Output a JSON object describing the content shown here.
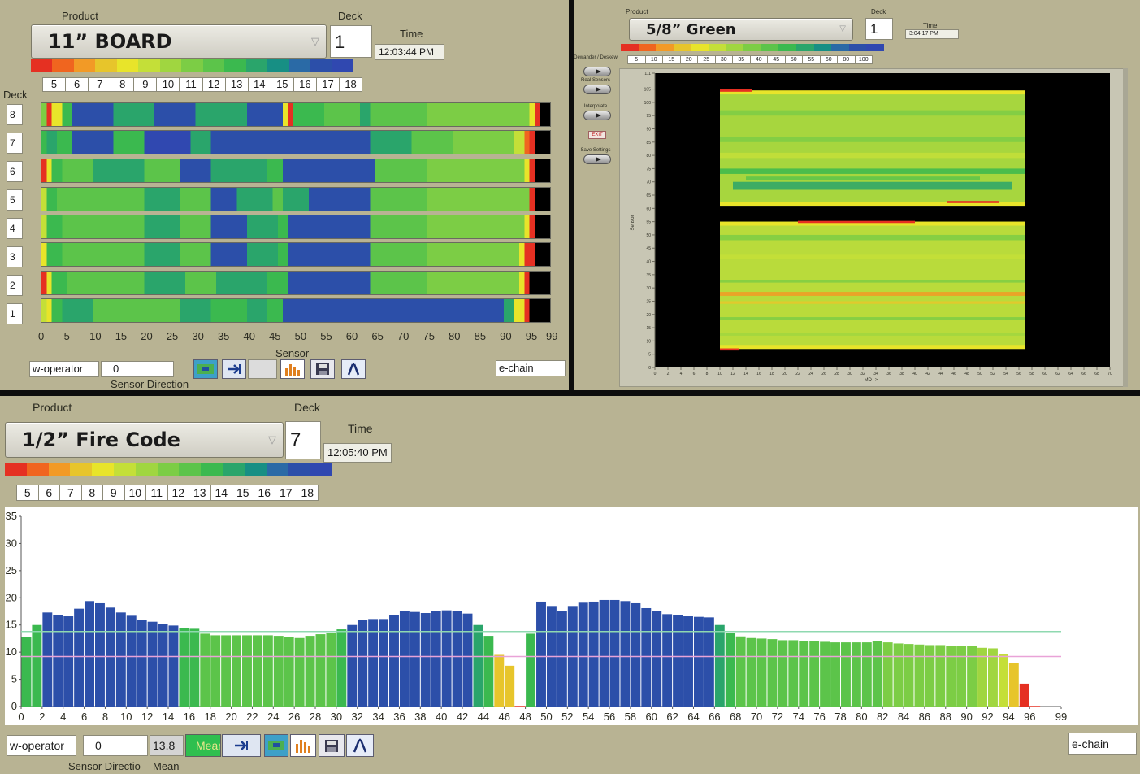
{
  "colors": {
    "scale": [
      "#e53022",
      "#f0651f",
      "#f29a26",
      "#e7c52b",
      "#e8e42a",
      "#c4df38",
      "#a0d640",
      "#7ccd45",
      "#5cc44a",
      "#3bb94f",
      "#2aa56b",
      "#178f84",
      "#2a6aa6",
      "#2c4fa9",
      "#3048b0"
    ],
    "panel_bg": "#b8b393"
  },
  "panel1": {
    "product_label": "Product",
    "product_value": "11” BOARD",
    "deck_label": "Deck",
    "deck_value": "1",
    "time_label": "Time",
    "time_value": "12:03:44 PM",
    "legend_numbers": [
      "5",
      "6",
      "7",
      "8",
      "9",
      "10",
      "11",
      "12",
      "13",
      "14",
      "15",
      "16",
      "17",
      "18"
    ],
    "deck_axis_label": "Deck",
    "decks": [
      "8",
      "7",
      "6",
      "5",
      "4",
      "3",
      "2",
      "1"
    ],
    "x_ticks": [
      "0",
      "5",
      "10",
      "15",
      "20",
      "25",
      "30",
      "35",
      "40",
      "45",
      "50",
      "55",
      "60",
      "65",
      "70",
      "75",
      "80",
      "85",
      "90",
      "95",
      "99"
    ],
    "x_axis_label": "Sensor",
    "mode_value": "w-operator",
    "direction_value": "0",
    "direction_label": "Sensor Direction",
    "chain_value": "e-chain"
  },
  "panel2": {
    "product_label": "Product",
    "product_value": "5/8” Green",
    "deck_label": "Deck",
    "deck_value": "1",
    "time_label": "Time",
    "time_value": "3:04:17 PM",
    "legend_numbers": [
      "5",
      "10",
      "15",
      "20",
      "25",
      "30",
      "35",
      "40",
      "45",
      "50",
      "55",
      "60",
      "80",
      "100"
    ],
    "buttons": [
      "Dewander / Deskew",
      "Real Sensors",
      "Interpolate",
      "EXIT",
      "Save Settings"
    ],
    "y_label": "Sensor",
    "y_ticks": [
      "0",
      "5",
      "10",
      "15",
      "20",
      "25",
      "30",
      "35",
      "40",
      "45",
      "50",
      "55",
      "60",
      "65",
      "70",
      "75",
      "80",
      "85",
      "90",
      "95",
      "100",
      "105",
      "111"
    ],
    "x_ticks": [
      "0",
      "2",
      "4",
      "6",
      "8",
      "10",
      "12",
      "14",
      "16",
      "18",
      "20",
      "22",
      "24",
      "26",
      "28",
      "30",
      "32",
      "34",
      "36",
      "38",
      "40",
      "42",
      "44",
      "46",
      "48",
      "50",
      "52",
      "54",
      "56",
      "58",
      "60",
      "62",
      "64",
      "66",
      "68",
      "70"
    ],
    "x_label": "MD-->"
  },
  "panel3": {
    "product_label": "Product",
    "product_value": "1/2” Fire Code",
    "deck_label": "Deck",
    "deck_value": "7",
    "time_label": "Time",
    "time_value": "12:05:40 PM",
    "legend_numbers": [
      "5",
      "6",
      "7",
      "8",
      "9",
      "10",
      "11",
      "12",
      "13",
      "14",
      "15",
      "16",
      "17",
      "18"
    ],
    "mode_value": "w-operator",
    "direction_value": "0",
    "direction_label": "Sensor Directio",
    "mean_value": "13.8",
    "mean_button": "Mean",
    "mean_label": "Mean",
    "chain_value": "e-chain"
  },
  "chart_data": {
    "type": "bar",
    "title": "",
    "xlabel": "",
    "ylabel": "",
    "ylim": [
      0,
      35
    ],
    "xlim": [
      0,
      99
    ],
    "x_ticks": [
      0,
      2,
      4,
      6,
      8,
      10,
      12,
      14,
      16,
      18,
      20,
      22,
      24,
      26,
      28,
      30,
      32,
      34,
      36,
      38,
      40,
      42,
      44,
      46,
      48,
      50,
      52,
      54,
      56,
      58,
      60,
      62,
      64,
      66,
      68,
      70,
      72,
      74,
      76,
      78,
      80,
      82,
      84,
      86,
      88,
      90,
      92,
      94,
      96,
      99
    ],
    "y_ticks": [
      0,
      5,
      10,
      15,
      20,
      25,
      30,
      35
    ],
    "reference_lines": [
      {
        "color": "#8fd9b0",
        "value": 13.8
      },
      {
        "color": "#e9a3d8",
        "value": 9.2
      }
    ],
    "x": [
      0,
      1,
      2,
      3,
      4,
      5,
      6,
      7,
      8,
      9,
      10,
      11,
      12,
      13,
      14,
      15,
      16,
      17,
      18,
      19,
      20,
      21,
      22,
      23,
      24,
      25,
      26,
      27,
      28,
      29,
      30,
      31,
      32,
      33,
      34,
      35,
      36,
      37,
      38,
      39,
      40,
      41,
      42,
      43,
      44,
      45,
      46,
      47,
      48,
      49,
      50,
      51,
      52,
      53,
      54,
      55,
      56,
      57,
      58,
      59,
      60,
      61,
      62,
      63,
      64,
      65,
      66,
      67,
      68,
      69,
      70,
      71,
      72,
      73,
      74,
      75,
      76,
      77,
      78,
      79,
      80,
      81,
      82,
      83,
      84,
      85,
      86,
      87,
      88,
      89,
      90,
      91,
      92,
      93,
      94,
      95,
      96
    ],
    "values": [
      12.8,
      15.0,
      17.3,
      16.9,
      16.6,
      18.0,
      19.4,
      19.0,
      18.2,
      17.3,
      16.7,
      16.0,
      15.6,
      15.2,
      14.9,
      14.5,
      14.3,
      13.4,
      13.1,
      13.1,
      13.1,
      13.1,
      13.1,
      13.1,
      13.0,
      12.8,
      12.6,
      13.0,
      13.3,
      13.6,
      14.2,
      15.0,
      16.0,
      16.1,
      16.1,
      16.9,
      17.5,
      17.4,
      17.2,
      17.5,
      17.7,
      17.5,
      17.1,
      15.0,
      13.0,
      9.5,
      7.5,
      0.0,
      13.4,
      19.3,
      18.5,
      17.6,
      18.5,
      19.1,
      19.3,
      19.6,
      19.6,
      19.4,
      19.0,
      18.1,
      17.5,
      17.0,
      16.8,
      16.6,
      16.5,
      16.4,
      15.0,
      13.5,
      12.9,
      12.6,
      12.5,
      12.4,
      12.2,
      12.2,
      12.1,
      12.1,
      11.9,
      11.8,
      11.8,
      11.8,
      11.8,
      12.0,
      11.8,
      11.6,
      11.5,
      11.4,
      11.3,
      11.3,
      11.2,
      11.1,
      11.1,
      10.8,
      10.7,
      9.6,
      8.0,
      4.2,
      0.0
    ],
    "bar_colors": [
      "#3bb94f",
      "#3bb94f",
      "#2c4fa9",
      "#2c4fa9",
      "#2c4fa9",
      "#2c4fa9",
      "#2c4fa9",
      "#2c4fa9",
      "#2c4fa9",
      "#2c4fa9",
      "#2c4fa9",
      "#2c4fa9",
      "#2c4fa9",
      "#2c4fa9",
      "#2c4fa9",
      "#3bb94f",
      "#3bb94f",
      "#5cc44a",
      "#5cc44a",
      "#5cc44a",
      "#5cc44a",
      "#5cc44a",
      "#5cc44a",
      "#5cc44a",
      "#5cc44a",
      "#5cc44a",
      "#5cc44a",
      "#5cc44a",
      "#5cc44a",
      "#5cc44a",
      "#3bb94f",
      "#2c4fa9",
      "#2c4fa9",
      "#2c4fa9",
      "#2c4fa9",
      "#2c4fa9",
      "#2c4fa9",
      "#2c4fa9",
      "#2c4fa9",
      "#2c4fa9",
      "#2c4fa9",
      "#2c4fa9",
      "#2c4fa9",
      "#2aa56b",
      "#3bb94f",
      "#e7c52b",
      "#e7c52b",
      "#ffffff",
      "#3bb94f",
      "#2c4fa9",
      "#2c4fa9",
      "#2c4fa9",
      "#2c4fa9",
      "#2c4fa9",
      "#2c4fa9",
      "#2c4fa9",
      "#2c4fa9",
      "#2c4fa9",
      "#2c4fa9",
      "#2c4fa9",
      "#2c4fa9",
      "#2c4fa9",
      "#2c4fa9",
      "#2c4fa9",
      "#2c4fa9",
      "#2c4fa9",
      "#2aa56b",
      "#3bb94f",
      "#5cc44a",
      "#5cc44a",
      "#5cc44a",
      "#5cc44a",
      "#5cc44a",
      "#5cc44a",
      "#5cc44a",
      "#5cc44a",
      "#5cc44a",
      "#5cc44a",
      "#5cc44a",
      "#5cc44a",
      "#5cc44a",
      "#5cc44a",
      "#7ccd45",
      "#7ccd45",
      "#7ccd45",
      "#7ccd45",
      "#7ccd45",
      "#7ccd45",
      "#7ccd45",
      "#7ccd45",
      "#7ccd45",
      "#a0d640",
      "#a0d640",
      "#c4df38",
      "#e7c52b",
      "#e53022",
      "#e53022"
    ]
  }
}
